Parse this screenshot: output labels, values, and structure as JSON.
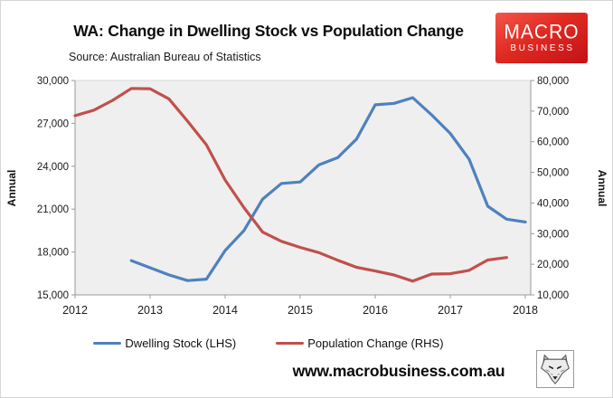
{
  "logo": {
    "line1": "MACRO",
    "line2": "BUSINESS"
  },
  "footer": {
    "url": "www.macrobusiness.com.au"
  },
  "colors": {
    "logo_red": "#E02A22",
    "plot_bg": "#EFEFEF",
    "plot_border": "#D9D9D9",
    "axis_line": "#9A9A9A",
    "tick_text": "#1A1A1A",
    "series_blue": "#4F81BD",
    "series_red": "#C0504D"
  },
  "chart_data": {
    "type": "line",
    "title": "WA: Change in Dwelling Stock vs Population Change",
    "source": "Source: Australian Bureau of Statistics",
    "grid": false,
    "legend_position": "bottom",
    "x_axis": {
      "min": 2012,
      "max": 2018.2,
      "ticks": [
        2012,
        2013,
        2014,
        2015,
        2016,
        2017,
        2018
      ]
    },
    "left_axis": {
      "label": "Annual",
      "min": 15000,
      "max": 30000,
      "step": 3000,
      "tick_values": [
        15000,
        18000,
        21000,
        24000,
        27000,
        30000
      ]
    },
    "right_axis": {
      "label": "Annual",
      "min": 10000,
      "max": 80000,
      "step": 10000,
      "tick_values": [
        10000,
        20000,
        30000,
        40000,
        50000,
        60000,
        70000,
        80000
      ]
    },
    "series": [
      {
        "name": "Dwelling Stock (LHS)",
        "axis": "left",
        "color": "#4F81BD",
        "x": [
          2012.75,
          2013.0,
          2013.25,
          2013.5,
          2013.75,
          2014.0,
          2014.25,
          2014.5,
          2014.75,
          2015.0,
          2015.25,
          2015.5,
          2015.75,
          2016.0,
          2016.25,
          2016.5,
          2016.75,
          2017.0,
          2017.25,
          2017.5,
          2017.75,
          2018.0
        ],
        "values": [
          17400,
          16900,
          16400,
          16000,
          16100,
          18100,
          19500,
          21700,
          22800,
          22900,
          24100,
          24600,
          25900,
          28300,
          28400,
          28800,
          27600,
          26300,
          24500,
          21200,
          20300,
          20100
        ]
      },
      {
        "name": "Population Change (RHS)",
        "axis": "right",
        "color": "#C0504D",
        "x": [
          2012.0,
          2012.25,
          2012.5,
          2012.75,
          2013.0,
          2013.25,
          2013.5,
          2013.75,
          2014.0,
          2014.25,
          2014.5,
          2014.75,
          2015.0,
          2015.25,
          2015.5,
          2015.75,
          2016.0,
          2016.25,
          2016.5,
          2016.75,
          2017.0,
          2017.25,
          2017.5,
          2017.75
        ],
        "values": [
          68500,
          70300,
          73500,
          77400,
          77300,
          74000,
          66700,
          59000,
          47500,
          38500,
          30500,
          27500,
          25500,
          23800,
          21300,
          19000,
          17800,
          16500,
          14500,
          16800,
          16900,
          18000,
          21400,
          22200
        ]
      }
    ]
  }
}
